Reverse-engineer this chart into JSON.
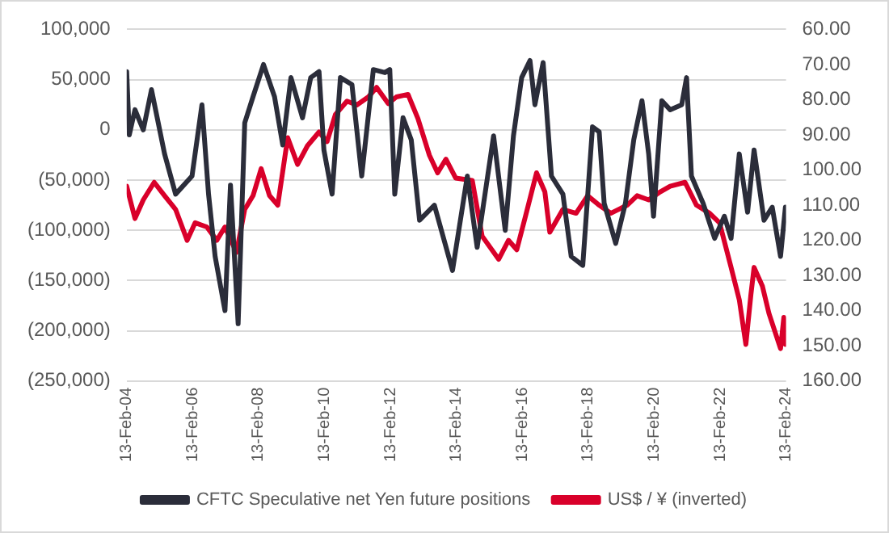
{
  "chart_data": {
    "type": "line",
    "xlim": [
      "2004-02-13",
      "2024-02-13"
    ],
    "xticks": [
      {
        "value": "2004-02-13",
        "label": "13-Feb-04"
      },
      {
        "value": "2006-02-13",
        "label": "13-Feb-06"
      },
      {
        "value": "2008-02-13",
        "label": "13-Feb-08"
      },
      {
        "value": "2010-02-13",
        "label": "13-Feb-10"
      },
      {
        "value": "2012-02-13",
        "label": "13-Feb-12"
      },
      {
        "value": "2014-02-13",
        "label": "13-Feb-14"
      },
      {
        "value": "2016-02-13",
        "label": "13-Feb-16"
      },
      {
        "value": "2018-02-13",
        "label": "13-Feb-18"
      },
      {
        "value": "2020-02-13",
        "label": "13-Feb-20"
      },
      {
        "value": "2022-02-13",
        "label": "13-Feb-22"
      },
      {
        "value": "2024-02-13",
        "label": "13-Feb-24"
      }
    ],
    "ylim": [
      -250000,
      100000
    ],
    "yticks": [
      {
        "value": -250000,
        "label": "(250,000)"
      },
      {
        "value": -200000,
        "label": "(200,000)"
      },
      {
        "value": -150000,
        "label": "(150,000)"
      },
      {
        "value": -100000,
        "label": "(100,000)"
      },
      {
        "value": -50000,
        "label": "(50,000)"
      },
      0,
      {
        "value": 50000,
        "label": "50,000"
      },
      {
        "value": 100000,
        "label": "100,000"
      }
    ],
    "y2lim": [
      160,
      60
    ],
    "y2ticks": [
      {
        "value": 60,
        "label": "60.00"
      },
      {
        "value": 70,
        "label": "70.00"
      },
      {
        "value": 80,
        "label": "80.00"
      },
      {
        "value": 90,
        "label": "90.00"
      },
      {
        "value": 100,
        "label": "100.00"
      },
      {
        "value": 110,
        "label": "110.00"
      },
      {
        "value": 120,
        "label": "120.00"
      },
      {
        "value": 130,
        "label": "130.00"
      },
      {
        "value": 140,
        "label": "140.00"
      },
      {
        "value": 150,
        "label": "150.00"
      },
      {
        "value": 160,
        "label": "160.00"
      }
    ],
    "grid": "y",
    "legend": "bottom",
    "marker": "none",
    "line_style": "solid",
    "series": [
      {
        "name": "CFTC Speculative net Yen future positions",
        "color": "#2b2d3a",
        "x": [
          "2004-02-13",
          "2004-03-13",
          "2004-05-15",
          "2004-08-15",
          "2004-11-14",
          "2005-04-08",
          "2005-08-08",
          "2006-02-06",
          "2006-05-27",
          "2006-08-08",
          "2006-10-20",
          "2007-02-06",
          "2007-04-08",
          "2007-07-02",
          "2007-09-13",
          "2007-12-14",
          "2008-04-08",
          "2008-08-08",
          "2008-11-07",
          "2009-02-06",
          "2009-06-14",
          "2009-09-13",
          "2009-12-14",
          "2010-02-06",
          "2010-05-08",
          "2010-08-08",
          "2010-12-14",
          "2011-04-01",
          "2011-08-08",
          "2011-12-14",
          "2012-02-06",
          "2012-04-01",
          "2012-07-02",
          "2012-10-01",
          "2013-01-01",
          "2013-06-14",
          "2014-01-01",
          "2014-06-14",
          "2014-10-01",
          "2015-04-01",
          "2015-08-08",
          "2015-11-07",
          "2016-02-06",
          "2016-05-08",
          "2016-07-02",
          "2016-10-01",
          "2017-01-01",
          "2017-05-08",
          "2017-08-08",
          "2017-12-14",
          "2018-04-01",
          "2018-06-14",
          "2018-08-08",
          "2018-12-14",
          "2019-04-01",
          "2019-07-02",
          "2019-10-01",
          "2019-12-14",
          "2020-02-06",
          "2020-05-08",
          "2020-08-08",
          "2020-12-14",
          "2021-02-06",
          "2021-04-01",
          "2021-08-08",
          "2021-12-14",
          "2022-04-01",
          "2022-06-14",
          "2022-09-13",
          "2022-12-14",
          "2023-02-24",
          "2023-06-14",
          "2023-09-13",
          "2023-12-14",
          "2024-02-06"
        ],
        "values": [
          58000,
          -5000,
          20000,
          0,
          40000,
          -24000,
          -64000,
          -46000,
          25000,
          -64000,
          -126000,
          -180000,
          -55000,
          -193000,
          7000,
          33000,
          65000,
          33000,
          -15000,
          52000,
          12000,
          52000,
          58000,
          -20000,
          -64000,
          52000,
          45000,
          -46000,
          60000,
          57000,
          60000,
          -64000,
          12000,
          -10000,
          -90000,
          -75000,
          -140000,
          -46000,
          -117000,
          -6000,
          -100000,
          -6000,
          52000,
          69000,
          25000,
          67000,
          -46000,
          -64000,
          -126000,
          -135000,
          3000,
          -2000,
          -73000,
          -113000,
          -73000,
          -10000,
          29000,
          -24000,
          -86000,
          29000,
          20000,
          25000,
          52000,
          -46000,
          -73000,
          -108000,
          -86000,
          -108000,
          -24000,
          -82000,
          -20000,
          -90000,
          -77000,
          -126000,
          -77000
        ]
      },
      {
        "name": "US$ / ¥ (inverted)",
        "color": "#d9002a",
        "axis": "y2",
        "x": [
          "2004-02-13",
          "2004-05-15",
          "2004-08-15",
          "2004-12-14",
          "2005-04-08",
          "2005-08-08",
          "2005-12-14",
          "2006-03-13",
          "2006-07-20",
          "2006-11-07",
          "2007-02-06",
          "2007-06-14",
          "2007-09-13",
          "2007-12-14",
          "2008-03-13",
          "2008-06-14",
          "2008-09-13",
          "2009-01-01",
          "2009-04-20",
          "2009-08-08",
          "2009-12-14",
          "2010-03-13",
          "2010-06-14",
          "2010-10-20",
          "2011-02-06",
          "2011-06-14",
          "2011-09-13",
          "2012-01-20",
          "2012-04-20",
          "2012-08-26",
          "2012-12-14",
          "2013-04-20",
          "2013-07-20",
          "2013-10-20",
          "2014-02-06",
          "2014-08-08",
          "2014-11-25",
          "2015-05-27",
          "2015-09-13",
          "2015-12-14",
          "2016-03-13",
          "2016-07-20",
          "2016-10-20",
          "2016-12-14",
          "2017-05-08",
          "2017-10-01",
          "2018-02-06",
          "2018-06-14",
          "2018-10-20",
          "2019-04-20",
          "2019-08-08",
          "2019-12-14",
          "2020-04-20",
          "2020-08-08",
          "2021-01-20",
          "2021-05-27",
          "2021-10-20",
          "2022-02-06",
          "2022-06-14",
          "2022-09-13",
          "2022-11-25",
          "2023-01-20",
          "2023-02-24",
          "2023-05-27",
          "2023-08-08",
          "2023-12-14",
          "2024-01-20",
          "2024-02-06"
        ],
        "values": [
          104.6,
          113.8,
          108.5,
          103.5,
          107.3,
          111.2,
          120,
          115,
          116.2,
          120,
          116.2,
          123.4,
          111.2,
          107.3,
          99.6,
          107.3,
          110,
          90.8,
          98.4,
          93.1,
          89.2,
          91.9,
          84.2,
          80.4,
          81.5,
          79.2,
          76.5,
          81.1,
          79.2,
          78.5,
          85.4,
          95.8,
          100.8,
          96.9,
          102.3,
          103,
          118.8,
          125.4,
          120,
          122.7,
          113.8,
          100.8,
          106.2,
          117.7,
          111.2,
          112.3,
          107.3,
          110,
          112.3,
          110,
          107.3,
          108.5,
          106.2,
          104.6,
          103.5,
          110,
          112.3,
          115,
          127.7,
          136.9,
          149.6,
          135.4,
          127.7,
          133,
          140.8,
          150.8,
          141.9,
          149.6
        ]
      }
    ]
  }
}
